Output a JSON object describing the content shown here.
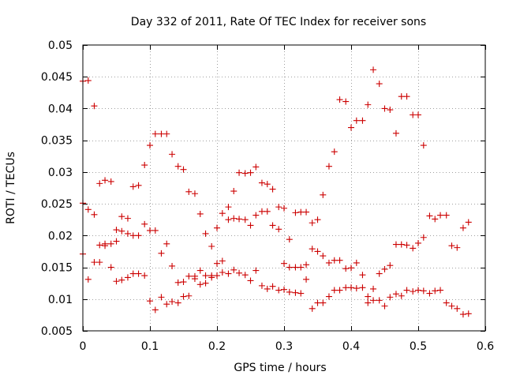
{
  "chart_data": {
    "type": "scatter",
    "title": "Day 332 of 2011, Rate Of TEC Index for receiver sons",
    "xlabel": "GPS time / hours",
    "ylabel": "ROTI / TECUs",
    "xlim": [
      0,
      0.6
    ],
    "ylim": [
      0.005,
      0.05
    ],
    "x_ticks": [
      0,
      0.1,
      0.2,
      0.3,
      0.4,
      0.5,
      0.6
    ],
    "x_tick_labels": [
      "0",
      "0.1",
      "0.2",
      "0.3",
      "0.4",
      "0.5",
      "0.6"
    ],
    "y_ticks": [
      0.005,
      0.01,
      0.015,
      0.02,
      0.025,
      0.03,
      0.035,
      0.04,
      0.045,
      0.05
    ],
    "y_tick_labels": [
      "0.005",
      "0.01",
      "0.015",
      "0.02",
      "0.025",
      "0.03",
      "0.035",
      "0.04",
      "0.045",
      "0.05"
    ],
    "grid": true,
    "marker": "+",
    "color": "#cc0000",
    "series": [
      {
        "name": "ROTI",
        "points": [
          [
            0.0,
            0.0443
          ],
          [
            0.0,
            0.0251
          ],
          [
            0.0,
            0.0171
          ],
          [
            0.008,
            0.0444
          ],
          [
            0.008,
            0.0241
          ],
          [
            0.008,
            0.0131
          ],
          [
            0.017,
            0.0404
          ],
          [
            0.017,
            0.0233
          ],
          [
            0.017,
            0.0158
          ],
          [
            0.025,
            0.0282
          ],
          [
            0.025,
            0.0185
          ],
          [
            0.025,
            0.0158
          ],
          [
            0.033,
            0.0287
          ],
          [
            0.033,
            0.0184
          ],
          [
            0.033,
            0.0187
          ],
          [
            0.042,
            0.0285
          ],
          [
            0.042,
            0.0187
          ],
          [
            0.042,
            0.015
          ],
          [
            0.05,
            0.0209
          ],
          [
            0.05,
            0.0191
          ],
          [
            0.05,
            0.0128
          ],
          [
            0.058,
            0.023
          ],
          [
            0.058,
            0.0207
          ],
          [
            0.058,
            0.013
          ],
          [
            0.067,
            0.0227
          ],
          [
            0.067,
            0.0203
          ],
          [
            0.067,
            0.0134
          ],
          [
            0.075,
            0.0277
          ],
          [
            0.075,
            0.02
          ],
          [
            0.075,
            0.014
          ],
          [
            0.083,
            0.0279
          ],
          [
            0.083,
            0.02
          ],
          [
            0.083,
            0.014
          ],
          [
            0.092,
            0.0311
          ],
          [
            0.092,
            0.0218
          ],
          [
            0.092,
            0.0137
          ],
          [
            0.1,
            0.0342
          ],
          [
            0.1,
            0.0208
          ],
          [
            0.1,
            0.0097
          ],
          [
            0.108,
            0.036
          ],
          [
            0.108,
            0.0208
          ],
          [
            0.108,
            0.0083
          ],
          [
            0.117,
            0.036
          ],
          [
            0.117,
            0.0172
          ],
          [
            0.117,
            0.0103
          ],
          [
            0.125,
            0.036
          ],
          [
            0.125,
            0.0187
          ],
          [
            0.125,
            0.0092
          ],
          [
            0.133,
            0.0328
          ],
          [
            0.133,
            0.0152
          ],
          [
            0.133,
            0.0096
          ],
          [
            0.142,
            0.0309
          ],
          [
            0.142,
            0.0126
          ],
          [
            0.142,
            0.0094
          ],
          [
            0.15,
            0.0304
          ],
          [
            0.15,
            0.0127
          ],
          [
            0.15,
            0.0104
          ],
          [
            0.158,
            0.0269
          ],
          [
            0.158,
            0.0136
          ],
          [
            0.158,
            0.0105
          ],
          [
            0.167,
            0.0266
          ],
          [
            0.167,
            0.0136
          ],
          [
            0.167,
            0.0132
          ],
          [
            0.175,
            0.0234
          ],
          [
            0.175,
            0.0145
          ],
          [
            0.175,
            0.0123
          ],
          [
            0.183,
            0.0203
          ],
          [
            0.183,
            0.0137
          ],
          [
            0.183,
            0.0125
          ],
          [
            0.192,
            0.0183
          ],
          [
            0.192,
            0.0134
          ],
          [
            0.192,
            0.0137
          ],
          [
            0.2,
            0.0212
          ],
          [
            0.2,
            0.0156
          ],
          [
            0.2,
            0.0137
          ],
          [
            0.208,
            0.0235
          ],
          [
            0.208,
            0.016
          ],
          [
            0.208,
            0.0142
          ],
          [
            0.217,
            0.0245
          ],
          [
            0.217,
            0.0225
          ],
          [
            0.217,
            0.014
          ],
          [
            0.225,
            0.027
          ],
          [
            0.225,
            0.0227
          ],
          [
            0.225,
            0.0146
          ],
          [
            0.233,
            0.0299
          ],
          [
            0.233,
            0.0226
          ],
          [
            0.233,
            0.0141
          ],
          [
            0.242,
            0.0298
          ],
          [
            0.242,
            0.0225
          ],
          [
            0.242,
            0.0138
          ],
          [
            0.25,
            0.0299
          ],
          [
            0.25,
            0.0216
          ],
          [
            0.25,
            0.0129
          ],
          [
            0.258,
            0.0308
          ],
          [
            0.258,
            0.0232
          ],
          [
            0.258,
            0.0145
          ],
          [
            0.267,
            0.0283
          ],
          [
            0.267,
            0.0238
          ],
          [
            0.267,
            0.0121
          ],
          [
            0.275,
            0.0281
          ],
          [
            0.275,
            0.0238
          ],
          [
            0.275,
            0.0116
          ],
          [
            0.283,
            0.0273
          ],
          [
            0.283,
            0.0216
          ],
          [
            0.283,
            0.012
          ],
          [
            0.292,
            0.0245
          ],
          [
            0.292,
            0.021
          ],
          [
            0.292,
            0.0114
          ],
          [
            0.3,
            0.0243
          ],
          [
            0.3,
            0.0156
          ],
          [
            0.3,
            0.0115
          ],
          [
            0.308,
            0.0194
          ],
          [
            0.308,
            0.015
          ],
          [
            0.308,
            0.0111
          ],
          [
            0.317,
            0.0236
          ],
          [
            0.317,
            0.015
          ],
          [
            0.317,
            0.011
          ],
          [
            0.325,
            0.0237
          ],
          [
            0.325,
            0.015
          ],
          [
            0.325,
            0.0109
          ],
          [
            0.333,
            0.0237
          ],
          [
            0.333,
            0.0154
          ],
          [
            0.333,
            0.0131
          ],
          [
            0.342,
            0.022
          ],
          [
            0.342,
            0.0179
          ],
          [
            0.342,
            0.0085
          ],
          [
            0.35,
            0.0225
          ],
          [
            0.35,
            0.0175
          ],
          [
            0.35,
            0.0094
          ],
          [
            0.358,
            0.0264
          ],
          [
            0.358,
            0.0168
          ],
          [
            0.358,
            0.0094
          ],
          [
            0.367,
            0.0309
          ],
          [
            0.367,
            0.0157
          ],
          [
            0.367,
            0.0104
          ],
          [
            0.375,
            0.0332
          ],
          [
            0.375,
            0.0161
          ],
          [
            0.375,
            0.0114
          ],
          [
            0.383,
            0.0414
          ],
          [
            0.383,
            0.0161
          ],
          [
            0.383,
            0.0114
          ],
          [
            0.392,
            0.0411
          ],
          [
            0.392,
            0.0148
          ],
          [
            0.392,
            0.0118
          ],
          [
            0.4,
            0.037
          ],
          [
            0.4,
            0.0149
          ],
          [
            0.4,
            0.0118
          ],
          [
            0.408,
            0.0381
          ],
          [
            0.408,
            0.0157
          ],
          [
            0.408,
            0.0117
          ],
          [
            0.417,
            0.0381
          ],
          [
            0.417,
            0.0138
          ],
          [
            0.417,
            0.0118
          ],
          [
            0.425,
            0.0406
          ],
          [
            0.425,
            0.0104
          ],
          [
            0.425,
            0.0094
          ],
          [
            0.433,
            0.0461
          ],
          [
            0.433,
            0.0116
          ],
          [
            0.433,
            0.0098
          ],
          [
            0.442,
            0.0439
          ],
          [
            0.442,
            0.014
          ],
          [
            0.442,
            0.0098
          ],
          [
            0.45,
            0.04
          ],
          [
            0.45,
            0.0147
          ],
          [
            0.45,
            0.0089
          ],
          [
            0.458,
            0.0398
          ],
          [
            0.458,
            0.0153
          ],
          [
            0.458,
            0.0103
          ],
          [
            0.467,
            0.0361
          ],
          [
            0.467,
            0.0186
          ],
          [
            0.467,
            0.0108
          ],
          [
            0.475,
            0.0419
          ],
          [
            0.475,
            0.0186
          ],
          [
            0.475,
            0.0105
          ],
          [
            0.483,
            0.0419
          ],
          [
            0.483,
            0.0185
          ],
          [
            0.483,
            0.0114
          ],
          [
            0.492,
            0.039
          ],
          [
            0.492,
            0.018
          ],
          [
            0.492,
            0.0112
          ],
          [
            0.5,
            0.039
          ],
          [
            0.5,
            0.0188
          ],
          [
            0.5,
            0.0114
          ],
          [
            0.508,
            0.0342
          ],
          [
            0.508,
            0.0197
          ],
          [
            0.508,
            0.0113
          ],
          [
            0.517,
            0.0231
          ],
          [
            0.517,
            0.0109
          ],
          [
            0.525,
            0.0226
          ],
          [
            0.525,
            0.0113
          ],
          [
            0.533,
            0.0232
          ],
          [
            0.533,
            0.0114
          ],
          [
            0.542,
            0.0232
          ],
          [
            0.542,
            0.0094
          ],
          [
            0.55,
            0.0184
          ],
          [
            0.55,
            0.0089
          ],
          [
            0.558,
            0.0181
          ],
          [
            0.558,
            0.0085
          ],
          [
            0.567,
            0.0212
          ],
          [
            0.567,
            0.0076
          ],
          [
            0.575,
            0.0221
          ],
          [
            0.575,
            0.0077
          ]
        ]
      }
    ]
  }
}
